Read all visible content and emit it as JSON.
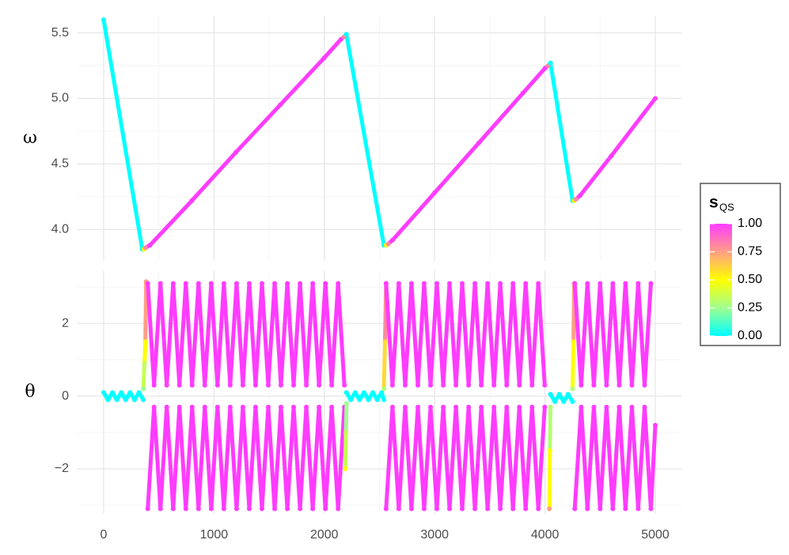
{
  "chart_data": [
    {
      "type": "line",
      "y_label": "ω",
      "grid": true,
      "xlim": [
        -240,
        5240
      ],
      "xticks": [
        0,
        1000,
        2000,
        3000,
        4000,
        5000
      ],
      "xminor": [
        500,
        1500,
        2500,
        3500,
        4500
      ],
      "ylim": [
        3.76,
        5.63
      ],
      "yticks": [
        {
          "value": 4,
          "label": "4.0"
        },
        4.5,
        {
          "value": 5,
          "label": "5.0"
        },
        5.5
      ],
      "yminor": [
        4.25,
        4.75,
        5.25
      ],
      "series": [
        {
          "x": [
            0,
            350,
            365,
            380,
            420,
            800,
            1200,
            1600,
            2000,
            2150,
            2180,
            2200,
            2540,
            2560,
            2580,
            2620,
            3000,
            3400,
            3800,
            4000,
            4030,
            4050,
            4250,
            4265,
            4280,
            4320,
            4600,
            5000
          ],
          "values": [
            5.6,
            3.85,
            3.85,
            3.86,
            3.88,
            4.22,
            4.59,
            4.95,
            5.31,
            5.45,
            5.47,
            5.49,
            3.88,
            3.88,
            3.89,
            3.92,
            4.28,
            4.66,
            5.04,
            5.23,
            5.25,
            5.27,
            4.22,
            4.22,
            4.23,
            4.26,
            4.56,
            5.0
          ],
          "s": [
            0,
            0,
            0.5,
            0.8,
            1,
            1,
            1,
            1,
            1,
            1,
            0.8,
            0,
            0,
            0.5,
            0.8,
            1,
            1,
            1,
            1,
            1,
            0.8,
            0,
            0,
            0.5,
            0.8,
            1,
            1,
            1
          ]
        }
      ]
    },
    {
      "type": "line",
      "y_label": "θ",
      "grid": true,
      "xlim": [
        -240,
        5240
      ],
      "xticks": [
        0,
        1000,
        2000,
        3000,
        4000,
        5000
      ],
      "xminor": [
        500,
        1500,
        2500,
        3500,
        4500
      ],
      "ylim": [
        -3.24,
        3.46
      ],
      "yticks": [
        {
          "value": -2,
          "label": "−2"
        },
        0,
        2
      ],
      "yminor": [
        -3,
        -1,
        1,
        3
      ],
      "series": [
        {
          "x": [
            0,
            40,
            80,
            120,
            160,
            200,
            240,
            280,
            320,
            360
          ],
          "values": [
            0.1,
            -0.1,
            0.1,
            -0.1,
            0.1,
            -0.1,
            0.1,
            -0.1,
            0.1,
            -0.1
          ],
          "s": 0
        },
        {
          "x": [
            360,
            370,
            378,
            385
          ],
          "values": [
            0.2,
            0.9,
            1.5,
            3.15
          ],
          "s": [
            0.25,
            0.35,
            0.5,
            0.75
          ]
        },
        {
          "x": [
            400,
            457,
            515,
            572,
            630,
            687,
            745,
            802,
            860,
            917,
            975,
            1032,
            1090,
            1147,
            1205,
            1262,
            1320,
            1377,
            1435,
            1492,
            1550,
            1607,
            1665,
            1722,
            1780,
            1837,
            1895,
            1952,
            2010,
            2067,
            2125,
            2182
          ],
          "values": [
            3.1,
            0.3,
            3.1,
            0.3,
            3.1,
            0.3,
            3.1,
            0.3,
            3.1,
            0.3,
            3.1,
            0.3,
            3.1,
            0.3,
            3.1,
            0.3,
            3.1,
            0.3,
            3.1,
            0.3,
            3.1,
            0.3,
            3.1,
            0.3,
            3.1,
            0.3,
            3.1,
            0.3,
            3.1,
            0.3,
            3.1,
            0.3
          ],
          "s": 1
        },
        {
          "x": [
            400,
            457,
            515,
            572,
            630,
            687,
            745,
            802,
            860,
            917,
            975,
            1032,
            1090,
            1147,
            1205,
            1262,
            1320,
            1377,
            1435,
            1492,
            1550,
            1607,
            1665,
            1722,
            1780,
            1837,
            1895,
            1952,
            2010,
            2067,
            2125,
            2182
          ],
          "values": [
            -3.1,
            -0.3,
            -3.1,
            -0.3,
            -3.1,
            -0.3,
            -3.1,
            -0.3,
            -3.1,
            -0.3,
            -3.1,
            -0.3,
            -3.1,
            -0.3,
            -3.1,
            -0.3,
            -3.1,
            -0.3,
            -3.1,
            -0.3,
            -3.1,
            -0.3,
            -3.1,
            -0.3,
            -3.1,
            -0.3,
            -3.1,
            -0.3,
            -3.1,
            -0.3,
            -3.1,
            -0.3
          ],
          "s": 1
        },
        {
          "x": [
            2190,
            2196,
            2202
          ],
          "values": [
            -2.0,
            -1.0,
            -0.2
          ],
          "s": [
            0.5,
            0.35,
            0.25
          ]
        },
        {
          "x": [
            2200,
            2240,
            2280,
            2320,
            2360,
            2400,
            2440,
            2480,
            2520,
            2540
          ],
          "values": [
            0.1,
            -0.1,
            0.1,
            -0.1,
            0.1,
            -0.1,
            0.1,
            -0.1,
            0.1,
            -0.1
          ],
          "s": 0
        },
        {
          "x": [
            2540,
            2550,
            2560
          ],
          "values": [
            0.2,
            1.5,
            3.1
          ],
          "s": [
            0.3,
            0.6,
            0.8
          ]
        },
        {
          "x": [
            2560,
            2618,
            2675,
            2733,
            2790,
            2848,
            2905,
            2963,
            3020,
            3078,
            3135,
            3193,
            3250,
            3308,
            3365,
            3423,
            3480,
            3538,
            3595,
            3653,
            3710,
            3768,
            3825,
            3883,
            3940,
            3998
          ],
          "values": [
            3.1,
            0.3,
            3.1,
            0.3,
            3.1,
            0.3,
            3.1,
            0.3,
            3.1,
            0.3,
            3.1,
            0.3,
            3.1,
            0.3,
            3.1,
            0.3,
            3.1,
            0.3,
            3.1,
            0.3,
            3.1,
            0.3,
            3.1,
            0.3,
            3.1,
            0.3
          ],
          "s": 1
        },
        {
          "x": [
            2560,
            2618,
            2675,
            2733,
            2790,
            2848,
            2905,
            2963,
            3020,
            3078,
            3135,
            3193,
            3250,
            3308,
            3365,
            3423,
            3480,
            3538,
            3595,
            3653,
            3710,
            3768,
            3825,
            3883,
            3940,
            3998
          ],
          "values": [
            -3.1,
            -0.3,
            -3.1,
            -0.3,
            -3.1,
            -0.3,
            -3.1,
            -0.3,
            -3.1,
            -0.3,
            -3.1,
            -0.3,
            -3.1,
            -0.3,
            -3.1,
            -0.3,
            -3.1,
            -0.3,
            -3.1,
            -0.3,
            -3.1,
            -0.3,
            -3.1,
            -0.3,
            -3.1,
            -0.3
          ],
          "s": 1
        },
        {
          "x": [
            4040,
            4045,
            4050
          ],
          "values": [
            -3.1,
            -1.5,
            -0.3
          ],
          "s": [
            0.75,
            0.5,
            0.3
          ]
        },
        {
          "x": [
            4050,
            4090,
            4130,
            4170,
            4210,
            4250
          ],
          "values": [
            0.05,
            -0.15,
            0.05,
            -0.15,
            0.05,
            -0.15
          ],
          "s": 0
        },
        {
          "x": [
            4250,
            4258,
            4265
          ],
          "values": [
            0.2,
            1.5,
            3.1
          ],
          "s": [
            0.3,
            0.5,
            0.75
          ]
        },
        {
          "x": [
            4270,
            4328,
            4385,
            4443,
            4500,
            4558,
            4615,
            4673,
            4730,
            4788,
            4845,
            4903,
            4960
          ],
          "values": [
            3.1,
            0.3,
            3.1,
            0.3,
            3.1,
            0.3,
            3.1,
            0.3,
            3.1,
            0.3,
            3.1,
            0.3,
            3.1
          ],
          "s": 1
        },
        {
          "x": [
            4270,
            4328,
            4385,
            4443,
            4500,
            4558,
            4615,
            4673,
            4730,
            4788,
            4845,
            4903,
            4960,
            5000
          ],
          "values": [
            -3.1,
            -0.3,
            -3.1,
            -0.3,
            -3.1,
            -0.3,
            -3.1,
            -0.3,
            -3.1,
            -0.3,
            -3.1,
            -0.3,
            -3.1,
            -0.8
          ],
          "s": 1
        }
      ]
    }
  ],
  "color_scale": {
    "title": "s",
    "subscript": "QS",
    "lim": [
      0,
      1
    ],
    "colormap": [
      "#00ffff",
      "#a0ff90",
      "#ffff00",
      "#ff9f85",
      "#ff3cff"
    ],
    "ticks": [
      {
        "value": 0,
        "label": "0.00"
      },
      {
        "value": 0.25,
        "label": "0.25"
      },
      {
        "value": 0.5,
        "label": "0.50"
      },
      {
        "value": 0.75,
        "label": "0.75"
      },
      {
        "value": 1,
        "label": "1.00"
      }
    ]
  }
}
